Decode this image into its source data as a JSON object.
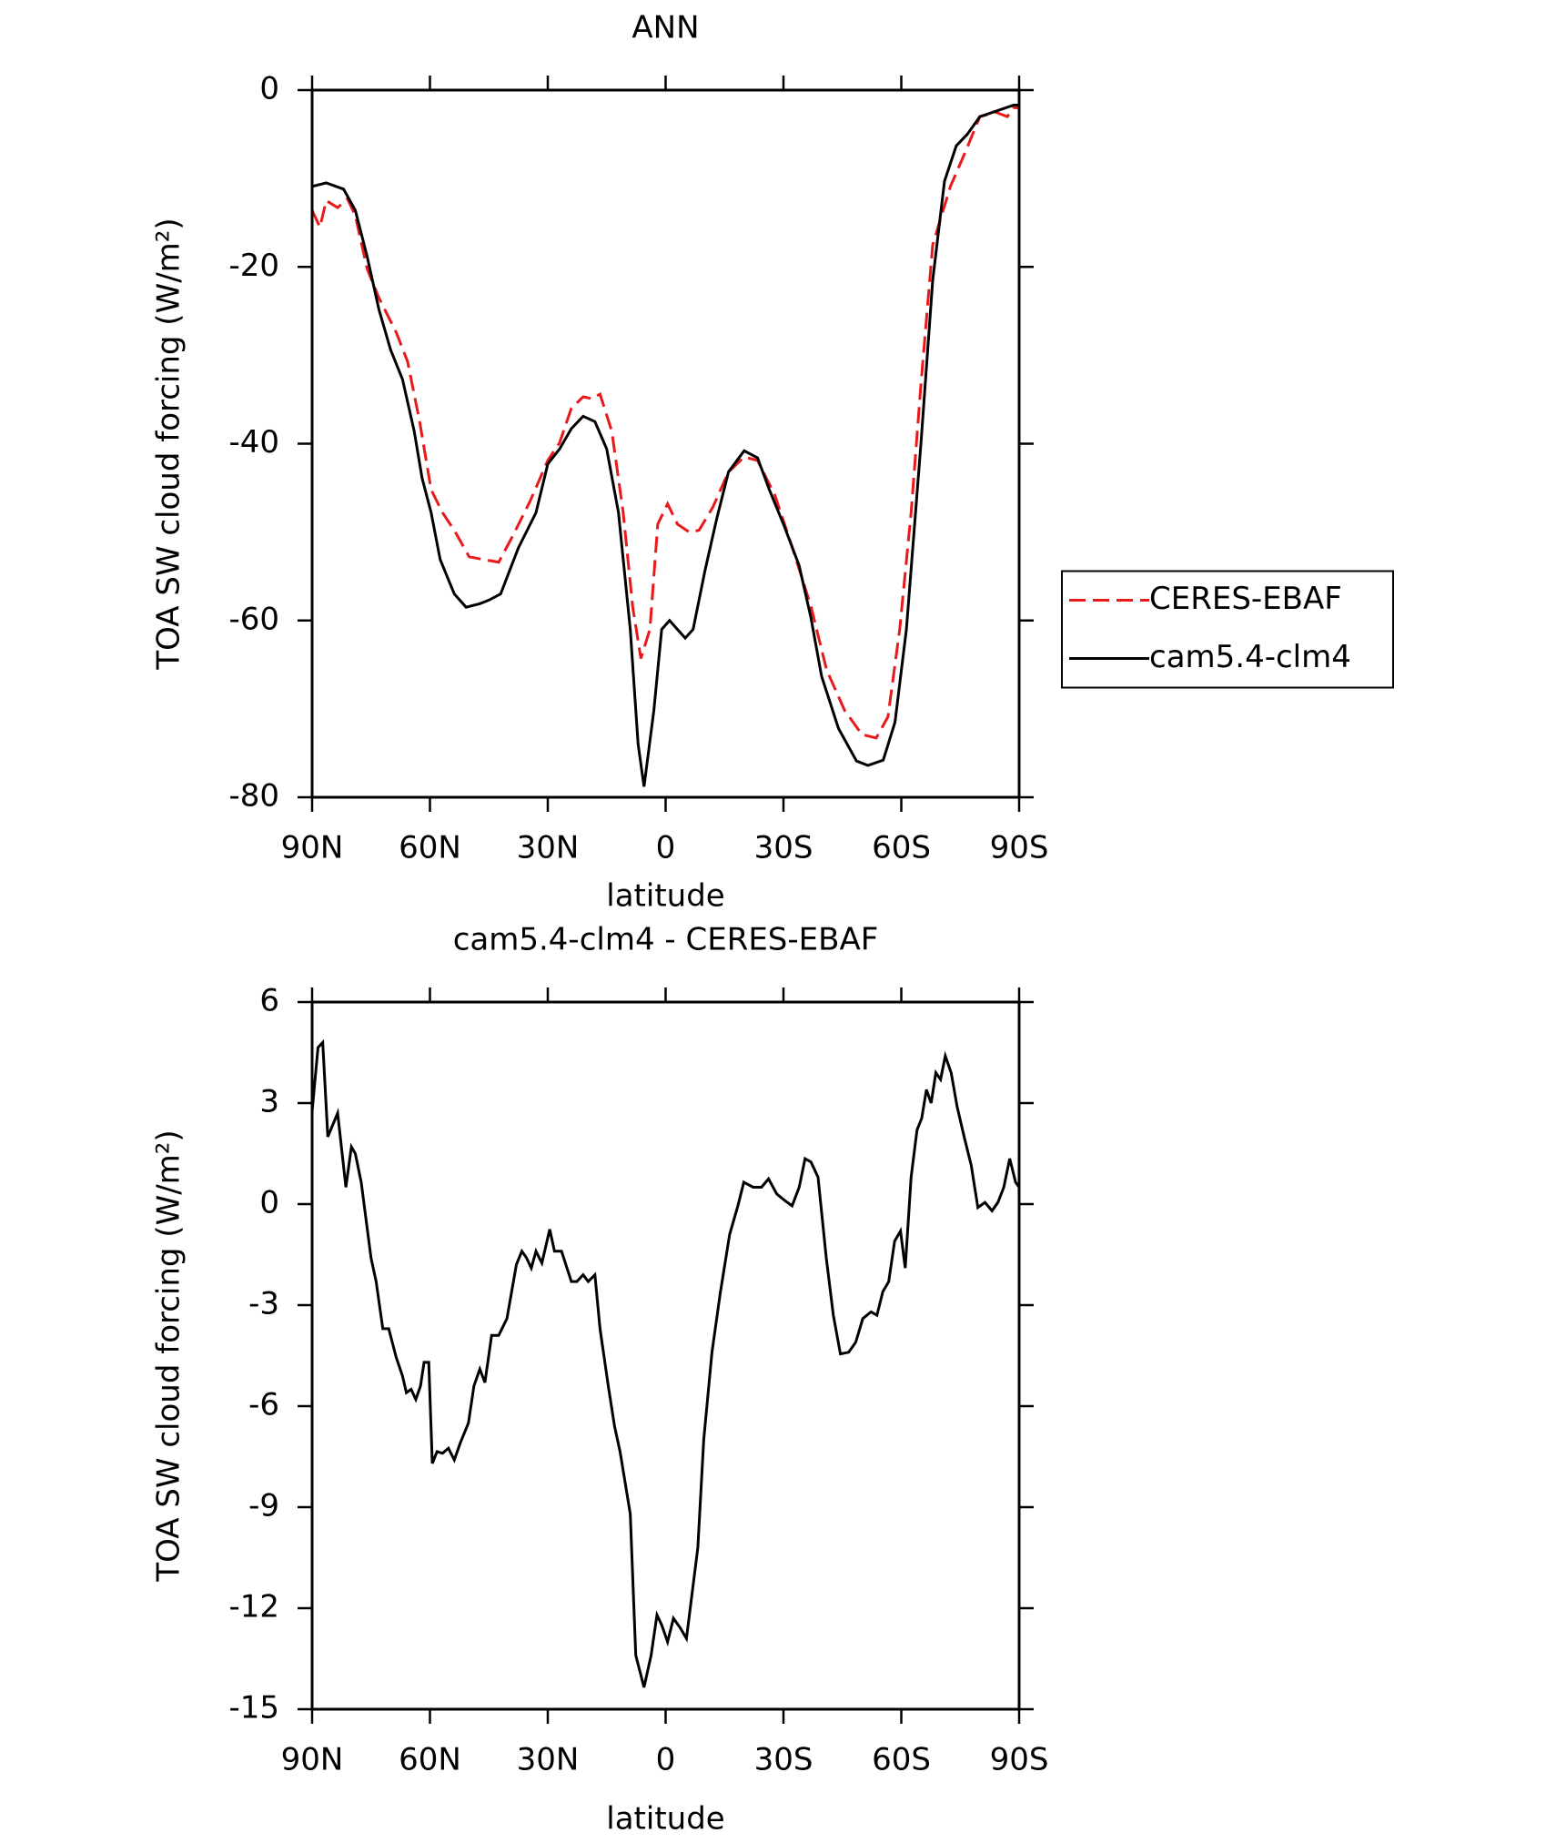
{
  "chart_data": [
    {
      "type": "line",
      "title": "ANN",
      "xlabel": "latitude",
      "ylabel": "TOA SW cloud forcing (W/m²)",
      "xlim": [
        90,
        -90
      ],
      "xticks": [
        {
          "value": 90,
          "label": "90N"
        },
        {
          "value": 60,
          "label": "60N"
        },
        {
          "value": 30,
          "label": "30N"
        },
        0,
        {
          "value": -30,
          "label": "30S"
        },
        {
          "value": -60,
          "label": "60S"
        },
        {
          "value": -90,
          "label": "90S"
        }
      ],
      "ylim": [
        -80,
        0
      ],
      "yticks": [
        0,
        -20,
        -40,
        -60,
        -80
      ],
      "legend": "right",
      "series": [
        {
          "name": "CERES-EBAF",
          "color": "#e8191b",
          "style": "dashed",
          "x": [
            90,
            88,
            86.4,
            83.5,
            81,
            79,
            76,
            73,
            68.6,
            65.7,
            62.7,
            59.7,
            56.8,
            53.8,
            50,
            46.4,
            42.5,
            39,
            34.5,
            30,
            27,
            24,
            21,
            18.8,
            16.7,
            13.7,
            10.8,
            8.4,
            6.3,
            4,
            2,
            -0.5,
            -3,
            -6,
            -8.5,
            -12,
            -16,
            -20,
            -23.4,
            -27.8,
            -32.3,
            -37,
            -41,
            -45.6,
            -50,
            -53.6,
            -56.6,
            -59.6,
            -62.5,
            -65,
            -68,
            -72.5,
            -76.3,
            -80,
            -84,
            -87,
            -88.6,
            -90
          ],
          "values": [
            -13.6,
            -15.5,
            -12.5,
            -13.3,
            -12.3,
            -14.2,
            -20.2,
            -23.5,
            -27.4,
            -30.7,
            -37.3,
            -45.2,
            -47.8,
            -49.8,
            -52.8,
            -53.1,
            -53.4,
            -50.5,
            -46.5,
            -41.9,
            -39.9,
            -36,
            -34.7,
            -34.9,
            -34.4,
            -38.6,
            -47.8,
            -58.4,
            -64.3,
            -61,
            -49.1,
            -46.8,
            -49.1,
            -50,
            -49.8,
            -47.2,
            -43.2,
            -41.5,
            -41.9,
            -45.8,
            -51.8,
            -58.4,
            -65.6,
            -70.2,
            -72.9,
            -73.3,
            -70.9,
            -61,
            -47.8,
            -33.3,
            -17.5,
            -10.9,
            -7,
            -3,
            -2.5,
            -3,
            -2,
            -2
          ]
        },
        {
          "name": "cam5.4-clm4",
          "color": "#000000",
          "style": "solid",
          "x": [
            90,
            86.4,
            82,
            79,
            76,
            73,
            70,
            67,
            64,
            62,
            59.7,
            57.4,
            53.8,
            50.8,
            47.3,
            45,
            42,
            37.5,
            33,
            30,
            27,
            24,
            21,
            18,
            15,
            12,
            9,
            7,
            5.5,
            3,
            1,
            -1,
            -3,
            -5,
            -7,
            -10,
            -13,
            -16,
            -20,
            -23.4,
            -26.4,
            -30,
            -34,
            -37,
            -39.7,
            -44,
            -48.6,
            -51.5,
            -55.4,
            -58.4,
            -61.3,
            -65,
            -68,
            -71,
            -74,
            -76.8,
            -80,
            -84,
            -88.6,
            -90
          ],
          "values": [
            -10.9,
            -10.5,
            -11.2,
            -13.6,
            -18.8,
            -24.8,
            -29.4,
            -32.7,
            -38.6,
            -43.9,
            -47.8,
            -53.1,
            -57,
            -58.5,
            -58.1,
            -57.7,
            -57,
            -51.8,
            -47.8,
            -42.3,
            -40.6,
            -38.3,
            -36.9,
            -37.5,
            -40.6,
            -47.8,
            -61,
            -74,
            -78.8,
            -70.2,
            -61,
            -60,
            -61,
            -62,
            -61,
            -54.4,
            -48.5,
            -43.2,
            -40.8,
            -41.6,
            -45.2,
            -49.1,
            -53.8,
            -59.7,
            -66.3,
            -72.2,
            -75.9,
            -76.4,
            -75.8,
            -71.5,
            -61,
            -40,
            -21.5,
            -10.3,
            -6.3,
            -5,
            -3,
            -2.4,
            -1.7,
            -1.7
          ]
        }
      ]
    },
    {
      "type": "line",
      "title": "cam5.4-clm4 - CERES-EBAF",
      "xlabel": "latitude",
      "ylabel": "TOA SW cloud forcing (W/m²)",
      "xlim": [
        90,
        -90
      ],
      "xticks": [
        {
          "value": 90,
          "label": "90N"
        },
        {
          "value": 60,
          "label": "60N"
        },
        {
          "value": 30,
          "label": "30N"
        },
        0,
        {
          "value": -30,
          "label": "30S"
        },
        {
          "value": -60,
          "label": "60S"
        },
        {
          "value": -90,
          "label": "90S"
        }
      ],
      "ylim": [
        -15,
        6
      ],
      "yticks": [
        6,
        3,
        0,
        -3,
        -6,
        -9,
        -12,
        -15
      ],
      "series": [
        {
          "color": "#000000",
          "style": "solid",
          "x": [
            90,
            88.5,
            87.3,
            86,
            83.5,
            81.4,
            80,
            79,
            77.5,
            75,
            73.7,
            72,
            70.5,
            68.6,
            67,
            66,
            64.8,
            63.6,
            62.4,
            61.5,
            60.3,
            59.4,
            58.2,
            56.8,
            55.3,
            53.8,
            52.3,
            50.2,
            48.8,
            47.3,
            46,
            44.3,
            42.5,
            40.4,
            38,
            36.6,
            35.4,
            34.2,
            33,
            31.5,
            29.5,
            28.3,
            26.5,
            24,
            22.6,
            21,
            19.7,
            18,
            16.7,
            14.6,
            13,
            11.6,
            9,
            7.6,
            5.5,
            3.7,
            2.2,
            1,
            -0.5,
            -2,
            -3.8,
            -5.3,
            -6.7,
            -8.2,
            -9.7,
            -11.8,
            -13.9,
            -16.3,
            -18.4,
            -19.9,
            -22.3,
            -24.4,
            -26.2,
            -28.3,
            -30.4,
            -32.2,
            -34,
            -35.5,
            -37,
            -38.8,
            -40.9,
            -42.7,
            -44.5,
            -46.6,
            -48.4,
            -50.2,
            -52.3,
            -53.8,
            -55.3,
            -56.8,
            -58.3,
            -59.8,
            -61,
            -62.5,
            -64,
            -65.2,
            -66.4,
            -67.6,
            -68.8,
            -70,
            -71.2,
            -72.7,
            -74.2,
            -76,
            -77.8,
            -79.5,
            -81.3,
            -83.1,
            -84.6,
            -86.1,
            -87.6,
            -89.1,
            -90
          ],
          "values": [
            2.75,
            4.65,
            4.8,
            2,
            2.7,
            0.5,
            1.7,
            1.5,
            0.65,
            -1.6,
            -2.3,
            -3.7,
            -3.7,
            -4.55,
            -5.1,
            -5.6,
            -5.5,
            -5.8,
            -5.4,
            -4.7,
            -4.7,
            -7.7,
            -7.35,
            -7.4,
            -7.25,
            -7.6,
            -7.1,
            -6.5,
            -5.4,
            -4.9,
            -5.3,
            -3.9,
            -3.9,
            -3.4,
            -1.8,
            -1.4,
            -1.6,
            -1.9,
            -1.4,
            -1.75,
            -0.75,
            -1.4,
            -1.4,
            -2.3,
            -2.3,
            -2.1,
            -2.3,
            -2.1,
            -3.7,
            -5.4,
            -6.6,
            -7.35,
            -9.2,
            -13.4,
            -14.35,
            -13.4,
            -12.2,
            -12.5,
            -13,
            -12.3,
            -12.6,
            -12.9,
            -11.6,
            -10.2,
            -7,
            -4.4,
            -2.65,
            -0.9,
            -0.05,
            0.65,
            0.5,
            0.5,
            0.75,
            0.3,
            0.1,
            -0.05,
            0.5,
            1.35,
            1.25,
            0.8,
            -1.6,
            -3.3,
            -4.45,
            -4.4,
            -4.1,
            -3.4,
            -3.2,
            -3.3,
            -2.6,
            -2.3,
            -1.1,
            -0.8,
            -1.9,
            0.8,
            2.2,
            2.55,
            3.4,
            3,
            3.9,
            3.7,
            4.4,
            3.9,
            2.9,
            2,
            1.15,
            -0.1,
            0.05,
            -0.2,
            0.05,
            0.5,
            1.35,
            0.65,
            0.5
          ]
        }
      ]
    }
  ]
}
